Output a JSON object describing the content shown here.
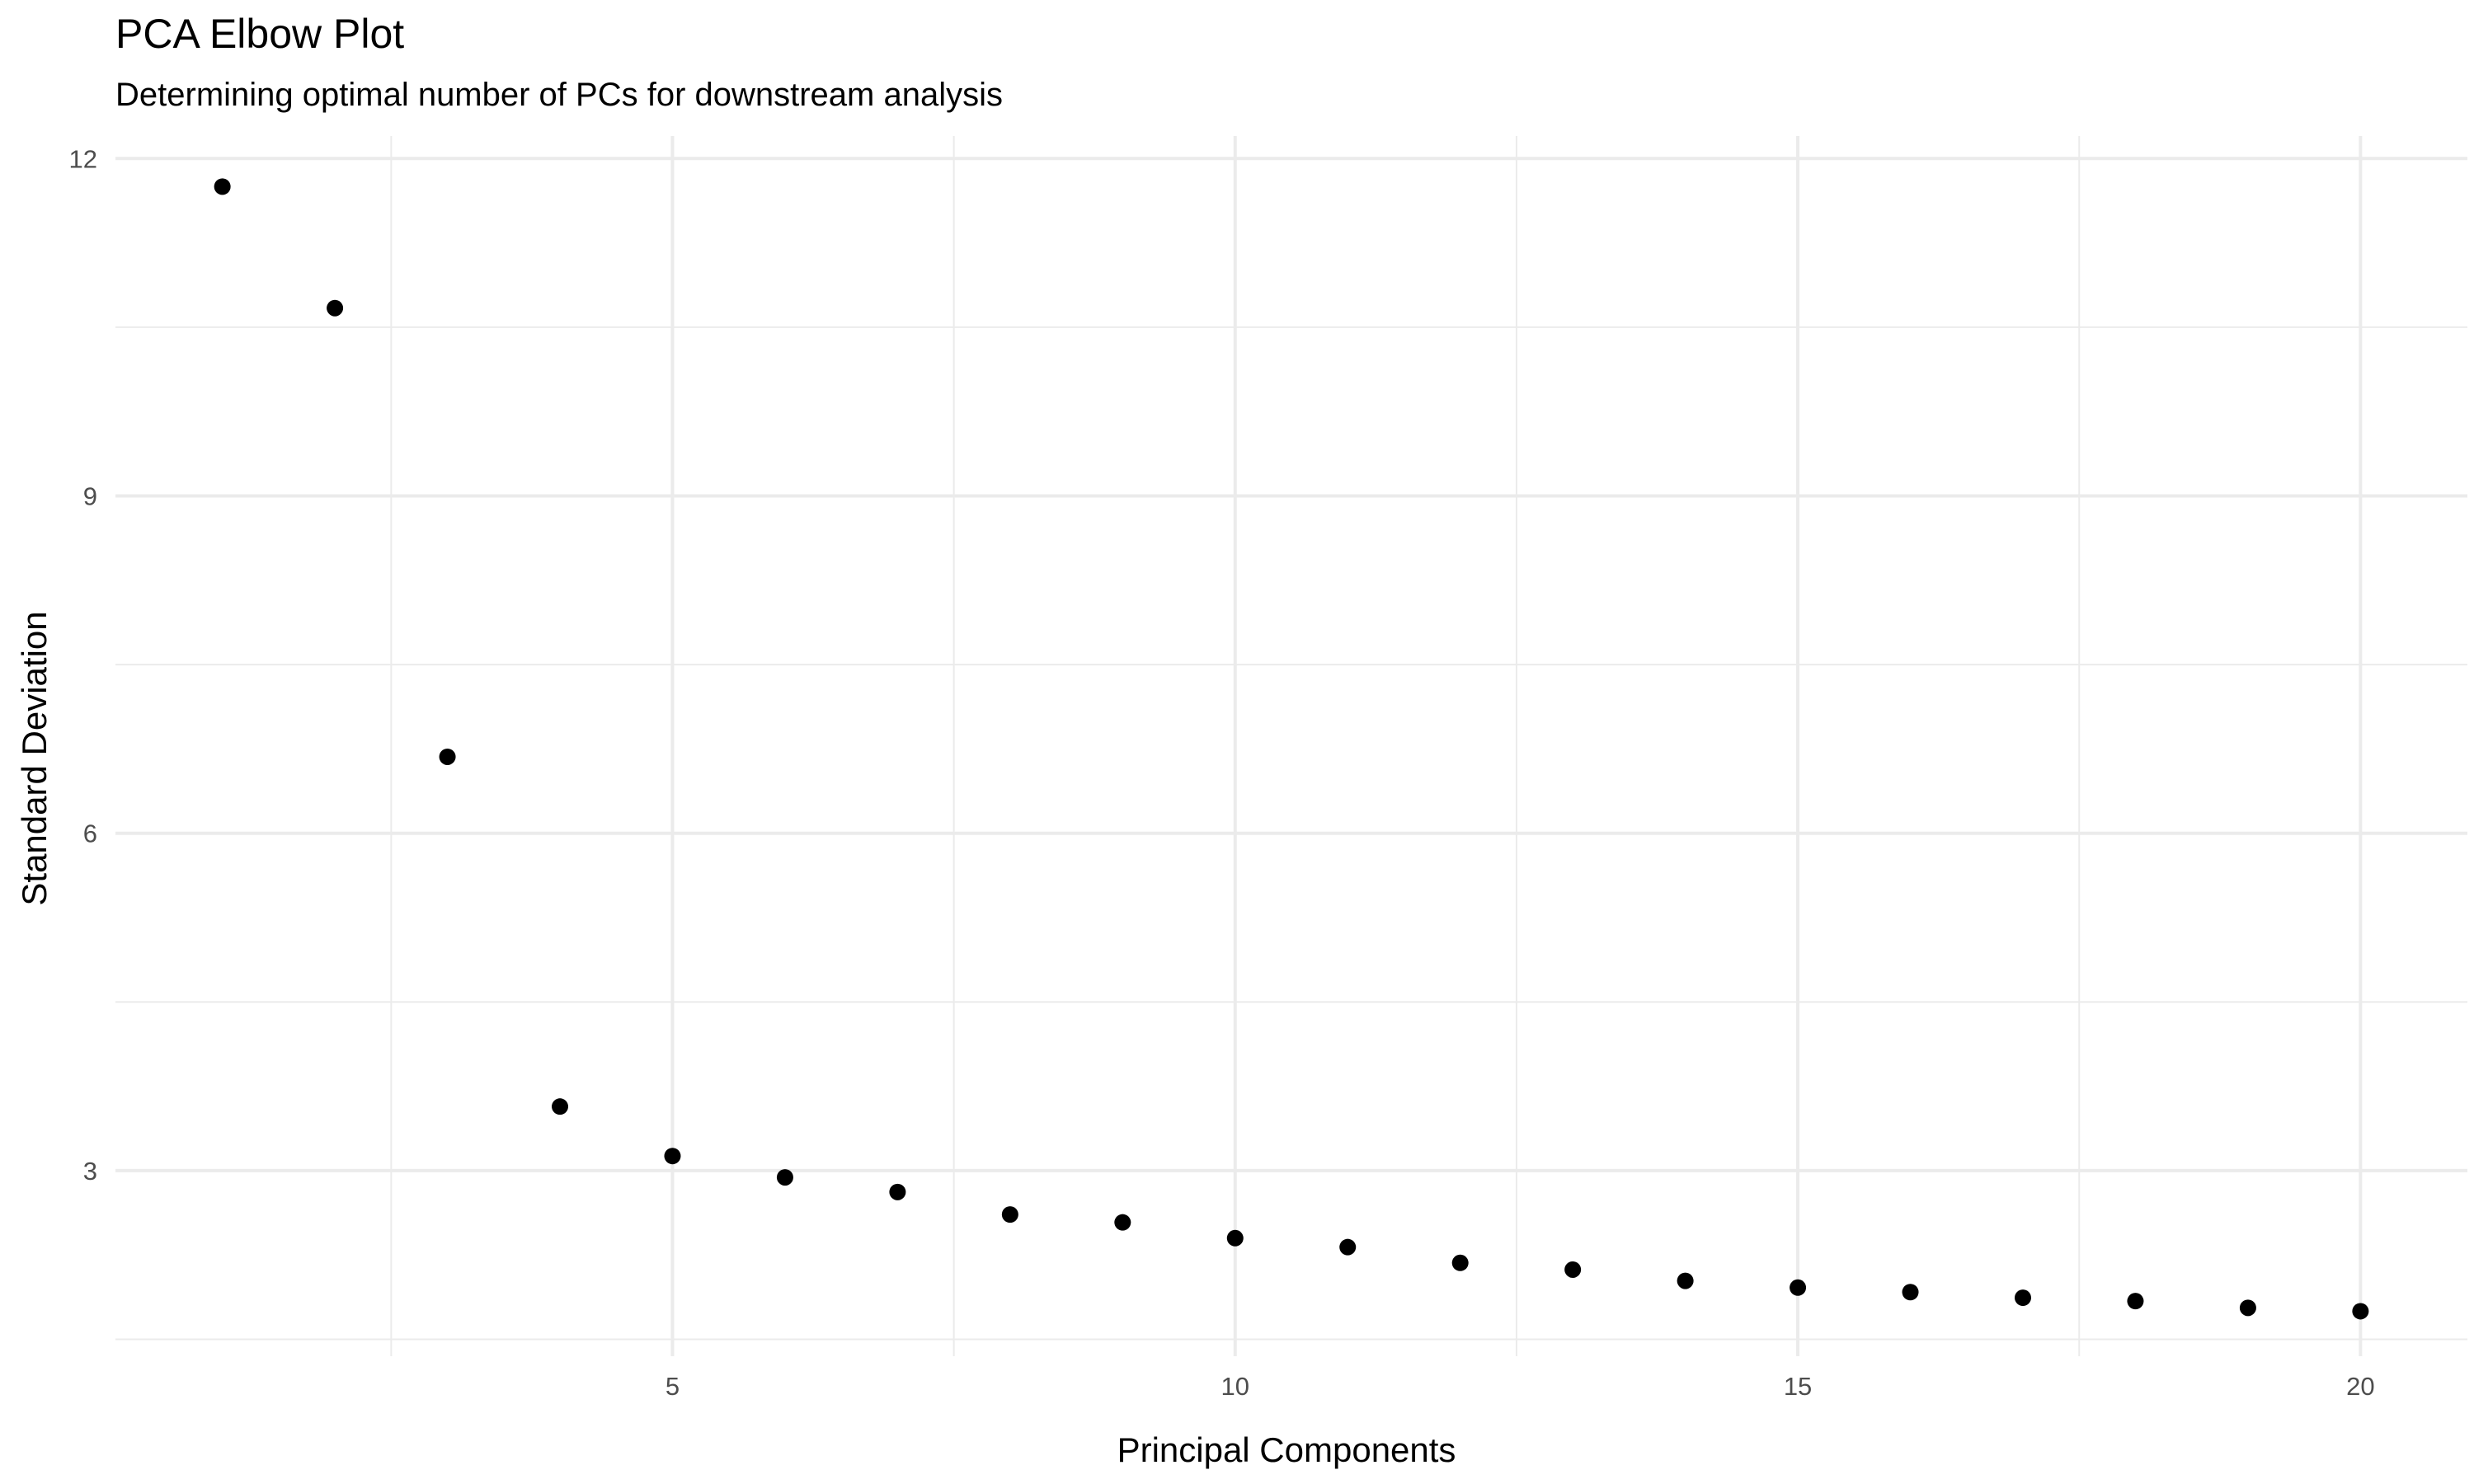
{
  "chart_data": {
    "type": "scatter",
    "title": "PCA Elbow Plot",
    "subtitle": "Determining optimal number of PCs for downstream analysis",
    "xlabel": "Principal Components",
    "ylabel": "Standard Deviation",
    "xlim": [
      0.05,
      20.95
    ],
    "ylim": [
      1.35,
      12.2
    ],
    "x_major_ticks": [
      5,
      10,
      15,
      20
    ],
    "x_minor_ticks": [
      2.5,
      7.5,
      12.5,
      17.5
    ],
    "y_major_ticks": [
      3,
      6,
      9,
      12
    ],
    "y_minor_ticks": [
      1.5,
      4.5,
      7.5,
      10.5
    ],
    "grid": true,
    "legend": "none",
    "point_color": "#000000",
    "background": "#ffffff",
    "x": [
      1,
      2,
      3,
      4,
      5,
      6,
      7,
      8,
      9,
      10,
      11,
      12,
      13,
      14,
      15,
      16,
      17,
      18,
      19,
      20
    ],
    "y": [
      11.75,
      10.67,
      6.68,
      3.57,
      3.13,
      2.94,
      2.81,
      2.61,
      2.54,
      2.4,
      2.32,
      2.18,
      2.12,
      2.02,
      1.96,
      1.92,
      1.87,
      1.84,
      1.78,
      1.75
    ]
  }
}
